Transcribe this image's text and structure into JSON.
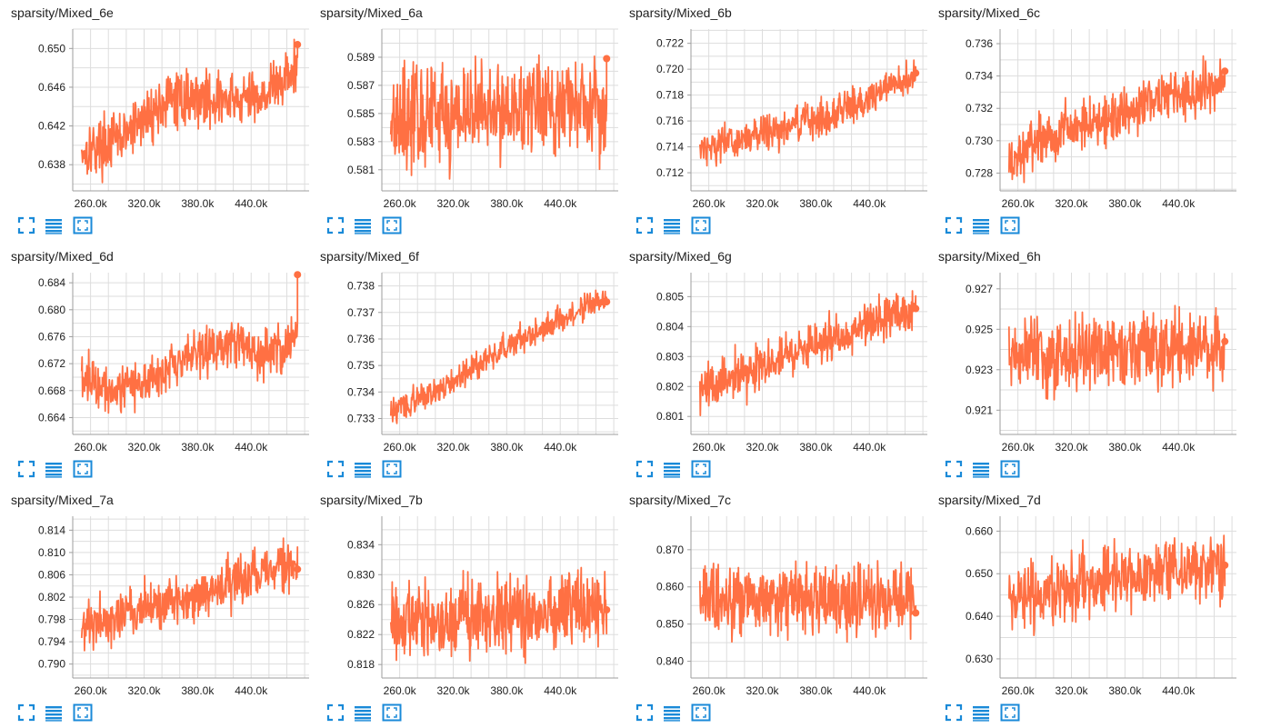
{
  "page": {
    "accent": "#ff7043",
    "icon_color": "#1a8ad8",
    "grid_color": "#dddddd"
  },
  "icons": [
    "fullscreen-icon",
    "lines-icon",
    "fit-domain-icon"
  ],
  "chart_data": [
    {
      "type": "line",
      "title": "sparsity/Mixed_6e",
      "xticks": [
        "260.0k",
        "320.0k",
        "380.0k",
        "440.0k"
      ],
      "xlim": [
        240000,
        505000
      ],
      "ylim": [
        0.6353,
        0.652
      ],
      "yticks": [
        "0.638",
        "0.642",
        "0.646",
        "0.650"
      ],
      "series": [
        {
          "x_start": 250000,
          "x_end": 492000,
          "trend": [
            [
              0,
              0.6395
            ],
            [
              0.1,
              0.64
            ],
            [
              0.2,
              0.641
            ],
            [
              0.3,
              0.643
            ],
            [
              0.4,
              0.6445
            ],
            [
              0.5,
              0.645
            ],
            [
              0.6,
              0.6448
            ],
            [
              0.7,
              0.6445
            ],
            [
              0.8,
              0.645
            ],
            [
              0.9,
              0.646
            ],
            [
              1,
              0.648
            ]
          ],
          "noise": 0.0022,
          "last": 0.6504
        }
      ]
    },
    {
      "type": "line",
      "title": "sparsity/Mixed_6a",
      "xticks": [
        "260.0k",
        "320.0k",
        "380.0k",
        "440.0k"
      ],
      "xlim": [
        240000,
        505000
      ],
      "ylim": [
        0.5795,
        0.591
      ],
      "yticks": [
        "0.581",
        "0.583",
        "0.585",
        "0.587",
        "0.589"
      ],
      "series": [
        {
          "x_start": 250000,
          "x_end": 492000,
          "trend": [
            [
              0,
              0.585
            ],
            [
              0.2,
              0.5848
            ],
            [
              0.4,
              0.5852
            ],
            [
              0.6,
              0.5855
            ],
            [
              0.8,
              0.5855
            ],
            [
              1,
              0.5858
            ]
          ],
          "noise": 0.0028,
          "last": 0.5889
        }
      ]
    },
    {
      "type": "line",
      "title": "sparsity/Mixed_6b",
      "xticks": [
        "260.0k",
        "320.0k",
        "380.0k",
        "440.0k"
      ],
      "xlim": [
        240000,
        505000
      ],
      "ylim": [
        0.7106,
        0.7231
      ],
      "yticks": [
        "0.712",
        "0.714",
        "0.716",
        "0.718",
        "0.720",
        "0.722"
      ],
      "series": [
        {
          "x_start": 250000,
          "x_end": 492000,
          "trend": [
            [
              0,
              0.714
            ],
            [
              0.2,
              0.7145
            ],
            [
              0.4,
              0.7155
            ],
            [
              0.6,
              0.7165
            ],
            [
              0.8,
              0.718
            ],
            [
              1,
              0.7195
            ]
          ],
          "noise": 0.0011,
          "last": 0.7197
        }
      ]
    },
    {
      "type": "line",
      "title": "sparsity/Mixed_6c",
      "xticks": [
        "260.0k",
        "320.0k",
        "380.0k",
        "440.0k"
      ],
      "xlim": [
        240000,
        505000
      ],
      "ylim": [
        0.7269,
        0.7369
      ],
      "yticks": [
        "0.728",
        "0.730",
        "0.732",
        "0.734",
        "0.736"
      ],
      "series": [
        {
          "x_start": 250000,
          "x_end": 492000,
          "trend": [
            [
              0,
              0.7285
            ],
            [
              0.15,
              0.73
            ],
            [
              0.3,
              0.731
            ],
            [
              0.5,
              0.7315
            ],
            [
              0.7,
              0.7328
            ],
            [
              0.85,
              0.733
            ],
            [
              1,
              0.7335
            ]
          ],
          "noise": 0.0012,
          "last": 0.7343
        }
      ]
    },
    {
      "type": "line",
      "title": "sparsity/Mixed_6d",
      "xticks": [
        "260.0k",
        "320.0k",
        "380.0k",
        "440.0k"
      ],
      "xlim": [
        240000,
        505000
      ],
      "ylim": [
        0.6615,
        0.6855
      ],
      "yticks": [
        "0.664",
        "0.668",
        "0.672",
        "0.676",
        "0.680",
        "0.684"
      ],
      "series": [
        {
          "x_start": 250000,
          "x_end": 492000,
          "trend": [
            [
              0,
              0.67
            ],
            [
              0.15,
              0.6685
            ],
            [
              0.3,
              0.6695
            ],
            [
              0.45,
              0.672
            ],
            [
              0.6,
              0.6745
            ],
            [
              0.75,
              0.675
            ],
            [
              0.85,
              0.673
            ],
            [
              1,
              0.676
            ]
          ],
          "noise": 0.0028,
          "last": 0.6852
        }
      ]
    },
    {
      "type": "line",
      "title": "sparsity/Mixed_6f",
      "xticks": [
        "260.0k",
        "320.0k",
        "380.0k",
        "440.0k"
      ],
      "xlim": [
        240000,
        505000
      ],
      "ylim": [
        0.7324,
        0.7385
      ],
      "yticks": [
        "0.733",
        "0.734",
        "0.735",
        "0.736",
        "0.737",
        "0.738"
      ],
      "series": [
        {
          "x_start": 250000,
          "x_end": 492000,
          "trend": [
            [
              0,
              0.7332
            ],
            [
              0.2,
              0.734
            ],
            [
              0.4,
              0.735
            ],
            [
              0.6,
              0.736
            ],
            [
              0.8,
              0.7368
            ],
            [
              1,
              0.7375
            ]
          ],
          "noise": 0.0004,
          "last": 0.7374
        }
      ]
    },
    {
      "type": "line",
      "title": "sparsity/Mixed_6g",
      "xticks": [
        "260.0k",
        "320.0k",
        "380.0k",
        "440.0k"
      ],
      "xlim": [
        240000,
        505000
      ],
      "ylim": [
        0.8004,
        0.8058
      ],
      "yticks": [
        "0.801",
        "0.802",
        "0.803",
        "0.804",
        "0.805"
      ],
      "series": [
        {
          "x_start": 250000,
          "x_end": 492000,
          "trend": [
            [
              0,
              0.8019
            ],
            [
              0.2,
              0.8024
            ],
            [
              0.4,
              0.803
            ],
            [
              0.6,
              0.8035
            ],
            [
              0.8,
              0.8042
            ],
            [
              1,
              0.8045
            ]
          ],
          "noise": 0.0006,
          "last": 0.8046
        }
      ]
    },
    {
      "type": "line",
      "title": "sparsity/Mixed_6h",
      "xticks": [
        "260.0k",
        "320.0k",
        "380.0k",
        "440.0k"
      ],
      "xlim": [
        240000,
        505000
      ],
      "ylim": [
        0.9198,
        0.9278
      ],
      "yticks": [
        "0.921",
        "0.923",
        "0.925",
        "0.927"
      ],
      "series": [
        {
          "x_start": 250000,
          "x_end": 492000,
          "trend": [
            [
              0,
              0.9235
            ],
            [
              0.3,
              0.9238
            ],
            [
              0.6,
              0.924
            ],
            [
              1,
              0.924
            ]
          ],
          "noise": 0.0014,
          "last": 0.9244
        }
      ]
    },
    {
      "type": "line",
      "title": "sparsity/Mixed_7a",
      "xticks": [
        "260.0k",
        "320.0k",
        "380.0k",
        "440.0k"
      ],
      "xlim": [
        240000,
        505000
      ],
      "ylim": [
        0.7875,
        0.8165
      ],
      "yticks": [
        "0.790",
        "0.794",
        "0.798",
        "0.802",
        "0.806",
        "0.810",
        "0.814"
      ],
      "series": [
        {
          "x_start": 250000,
          "x_end": 492000,
          "trend": [
            [
              0,
              0.797
            ],
            [
              0.2,
              0.799
            ],
            [
              0.4,
              0.801
            ],
            [
              0.6,
              0.803
            ],
            [
              0.8,
              0.806
            ],
            [
              1,
              0.8075
            ]
          ],
          "noise": 0.0035,
          "last": 0.807
        }
      ]
    },
    {
      "type": "line",
      "title": "sparsity/Mixed_7b",
      "xticks": [
        "260.0k",
        "320.0k",
        "380.0k",
        "440.0k"
      ],
      "xlim": [
        240000,
        505000
      ],
      "ylim": [
        0.8162,
        0.8378
      ],
      "yticks": [
        "0.818",
        "0.822",
        "0.826",
        "0.830",
        "0.834"
      ],
      "series": [
        {
          "x_start": 250000,
          "x_end": 492000,
          "trend": [
            [
              0,
              0.8235
            ],
            [
              0.3,
              0.824
            ],
            [
              0.6,
              0.825
            ],
            [
              1,
              0.8255
            ]
          ],
          "noise": 0.004,
          "last": 0.8253
        }
      ]
    },
    {
      "type": "line",
      "title": "sparsity/Mixed_7c",
      "xticks": [
        "260.0k",
        "320.0k",
        "380.0k",
        "440.0k"
      ],
      "xlim": [
        240000,
        505000
      ],
      "ylim": [
        0.8355,
        0.879
      ],
      "yticks": [
        "0.840",
        "0.850",
        "0.860",
        "0.870"
      ],
      "series": [
        {
          "x_start": 250000,
          "x_end": 492000,
          "trend": [
            [
              0,
              0.856
            ],
            [
              0.3,
              0.857
            ],
            [
              0.6,
              0.8565
            ],
            [
              1,
              0.856
            ]
          ],
          "noise": 0.0075,
          "last": 0.853
        }
      ]
    },
    {
      "type": "line",
      "title": "sparsity/Mixed_7d",
      "xticks": [
        "260.0k",
        "320.0k",
        "380.0k",
        "440.0k"
      ],
      "xlim": [
        240000,
        505000
      ],
      "ylim": [
        0.6255,
        0.6635
      ],
      "yticks": [
        "0.630",
        "0.640",
        "0.650",
        "0.660"
      ],
      "series": [
        {
          "x_start": 250000,
          "x_end": 492000,
          "trend": [
            [
              0,
              0.643
            ],
            [
              0.2,
              0.646
            ],
            [
              0.4,
              0.648
            ],
            [
              0.6,
              0.6495
            ],
            [
              0.8,
              0.651
            ],
            [
              1,
              0.6515
            ]
          ],
          "noise": 0.006,
          "last": 0.652
        }
      ]
    }
  ]
}
